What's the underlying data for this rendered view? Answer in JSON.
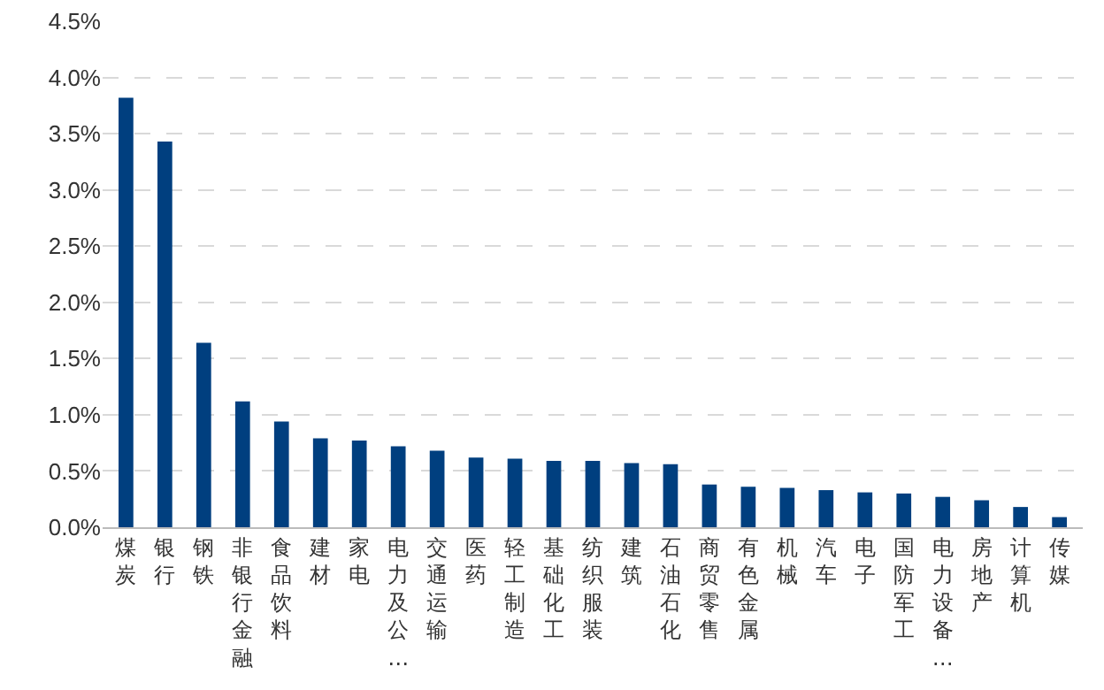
{
  "chart_data": {
    "type": "bar",
    "categories": [
      "煤炭",
      "银行",
      "钢铁",
      "非银行金融",
      "食品饮料",
      "建材",
      "家电",
      "电力及公…",
      "交通运输",
      "医药",
      "轻工制造",
      "基础化工",
      "纺织服装",
      "建筑",
      "石油石化",
      "商贸零售",
      "有色金属",
      "机械",
      "汽车",
      "电子",
      "国防军工",
      "电力设备…",
      "房地产",
      "计算机",
      "传媒"
    ],
    "values": [
      3.82,
      3.43,
      1.64,
      1.12,
      0.94,
      0.79,
      0.77,
      0.72,
      0.68,
      0.62,
      0.61,
      0.59,
      0.59,
      0.57,
      0.56,
      0.38,
      0.36,
      0.35,
      0.33,
      0.31,
      0.3,
      0.27,
      0.24,
      0.18,
      0.09
    ],
    "color": "#003f7f",
    "ylim": [
      0,
      4.5
    ],
    "yticks": [
      {
        "value": 0,
        "label": "0.0%"
      },
      {
        "value": 0.5,
        "label": "0.5%"
      },
      {
        "value": 1,
        "label": "1.0%"
      },
      {
        "value": 1.5,
        "label": "1.5%"
      },
      {
        "value": 2,
        "label": "2.0%"
      },
      {
        "value": 2.5,
        "label": "2.5%"
      },
      {
        "value": 3,
        "label": "3.0%"
      },
      {
        "value": 3.5,
        "label": "3.5%"
      },
      {
        "value": 4,
        "label": "4.0%"
      },
      {
        "value": 4.5,
        "label": "4.5%"
      }
    ],
    "grid": "y",
    "line_style": "dashed"
  }
}
